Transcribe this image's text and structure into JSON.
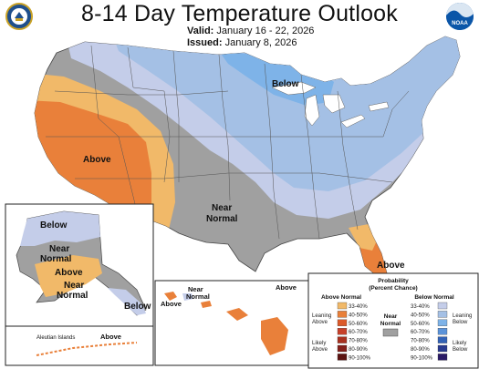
{
  "title": "8-14 Day Temperature Outlook",
  "valid": {
    "label": "Valid:",
    "value": "January 16 - 22, 2026"
  },
  "issued": {
    "label": "Issued:",
    "value": "January 8, 2026"
  },
  "logos": {
    "left": "department-of-commerce-seal",
    "right": "noaa-logo"
  },
  "map_labels": {
    "conus_above": "Above",
    "conus_below": "Below",
    "conus_near_normal": [
      "Near",
      "Normal"
    ],
    "florida_above": "Above",
    "alaska_below": "Below",
    "alaska_near_normal": [
      "Near",
      "Normal"
    ],
    "alaska_above": "Above",
    "alaska_sw_near_normal": [
      "Near",
      "Normal"
    ],
    "alaska_se_below": "Below",
    "aleutian_title": "Aleutian Islands",
    "aleutian_above": "Above",
    "hawaii_near_normal": [
      "Near",
      "Normal"
    ],
    "hawaii_above_west": "Above",
    "hawaii_above_east": "Above"
  },
  "legend": {
    "title": [
      "Probability",
      "(Percent Chance)"
    ],
    "above_header": "Above Normal",
    "below_header": "Below Normal",
    "near_label": [
      "Near",
      "Normal"
    ],
    "leaning_above": [
      "Leaning",
      "Above"
    ],
    "likely_above": [
      "Likely",
      "Above"
    ],
    "leaning_below": [
      "Leaning",
      "Below"
    ],
    "likely_below": [
      "Likely",
      "Below"
    ],
    "ranges": [
      "33-40%",
      "40-50%",
      "50-60%",
      "60-70%",
      "70-80%",
      "80-90%",
      "90-100%"
    ],
    "above_colors": [
      "#f1b969",
      "#e9803a",
      "#dc5a2a",
      "#c7412a",
      "#a8311f",
      "#83201a",
      "#5c1311"
    ],
    "below_colors": [
      "#c4cde9",
      "#a4c0e5",
      "#7eb3e8",
      "#5b93d9",
      "#3262b6",
      "#283a8f",
      "#2a1a66"
    ],
    "near_color": "#a0a0a0"
  },
  "colors": {
    "above_33_40": "#f1b969",
    "above_40_50": "#e9803a",
    "below_33_40": "#c4cde9",
    "below_40_50": "#a4c0e5",
    "below_50_60": "#7eb3e8",
    "near_normal": "#a0a0a0",
    "water": "#ffffff"
  }
}
